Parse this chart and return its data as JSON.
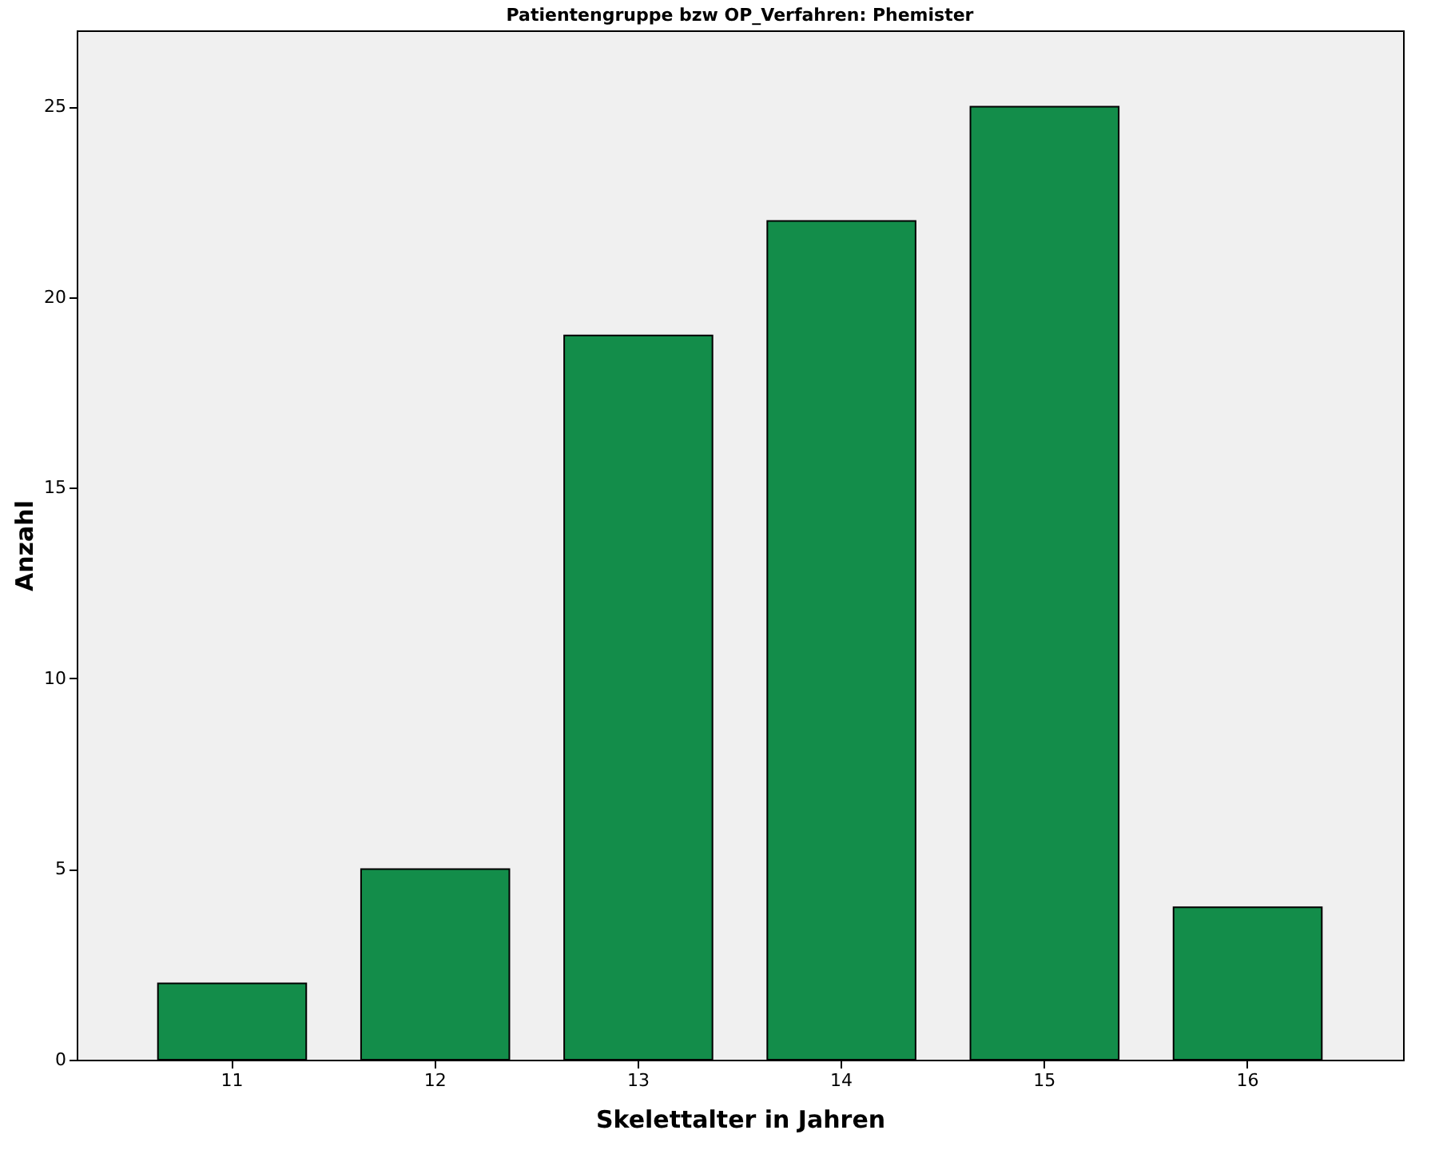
{
  "chart_data": {
    "type": "bar",
    "title": "Patientengruppe bzw OP_Verfahren: Phemister",
    "xlabel": "Skelettalter in Jahren",
    "ylabel": "Anzahl",
    "categories": [
      "11",
      "12",
      "13",
      "14",
      "15",
      "16"
    ],
    "values": [
      2,
      5,
      19,
      22,
      25,
      4
    ],
    "color": "#138d4a",
    "ylim": [
      0,
      27
    ],
    "yticks": [
      0,
      5,
      10,
      15,
      20,
      25
    ],
    "grid": false
  }
}
